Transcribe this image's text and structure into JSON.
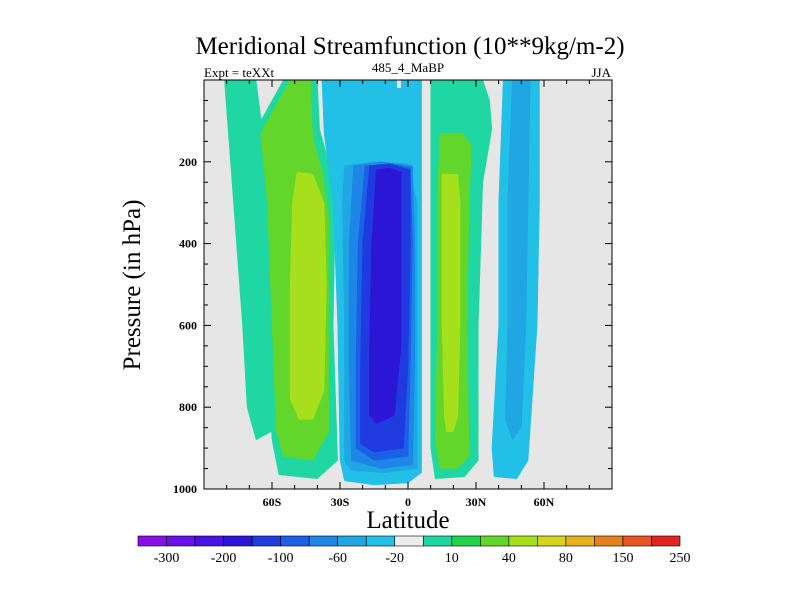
{
  "chart_data": {
    "type": "contour",
    "title": "Meridional Streamfunction (10**9kg/m-2)",
    "subtitle_left": "Expt = teXXt",
    "subtitle_center": "485_4_MaBP",
    "subtitle_right": "JJA",
    "xlabel": "Latitude",
    "ylabel": "Pressure (in hPa)",
    "xlim": [
      -90,
      90
    ],
    "ylim": [
      1000,
      0
    ],
    "x_ticks": [
      {
        "value": -60,
        "label": "60S"
      },
      {
        "value": -30,
        "label": "30S"
      },
      {
        "value": 0,
        "label": "0"
      },
      {
        "value": 30,
        "label": "30N"
      },
      {
        "value": 60,
        "label": "60N"
      }
    ],
    "y_ticks": [
      {
        "value": 200,
        "label": "200"
      },
      {
        "value": 400,
        "label": "400"
      },
      {
        "value": 600,
        "label": "600"
      },
      {
        "value": 800,
        "label": "800"
      },
      {
        "value": 1000,
        "label": "1000"
      }
    ],
    "background_color": "#e6e6e6",
    "colorbar": {
      "colors": [
        "#8a0ee8",
        "#6a0fe6",
        "#4a12e2",
        "#2b16d6",
        "#1f3be0",
        "#1a61e6",
        "#1d86e6",
        "#1fa6e3",
        "#22c0e6",
        "#ececec",
        "#1fd7a2",
        "#22d14a",
        "#62d62a",
        "#a6e01c",
        "#d4d41a",
        "#e6b21c",
        "#e6801f",
        "#e65522",
        "#e02422"
      ],
      "labels": [
        "-300",
        "-200",
        "-100",
        "-60",
        "-20",
        "10",
        "40",
        "80",
        "150",
        "250"
      ]
    },
    "regions": [
      {
        "value": 10,
        "color": "#1fd7a2",
        "lat_lon_polygon": [
          [
            -81,
            0
          ],
          [
            -67,
            0
          ],
          [
            -64,
            130
          ],
          [
            -62,
            330
          ],
          [
            -58,
            550
          ],
          [
            -57,
            850
          ],
          [
            -67,
            880
          ],
          [
            -71,
            800
          ],
          [
            -73,
            600
          ],
          [
            -77,
            300
          ]
        ]
      },
      {
        "value": 10,
        "color": "#1fd7a2",
        "lat_lon_polygon": [
          [
            -55,
            0
          ],
          [
            -40,
            0
          ],
          [
            -39,
            120
          ],
          [
            -36,
            180
          ],
          [
            -32,
            300
          ],
          [
            -33,
            600
          ],
          [
            -31,
            930
          ],
          [
            -40,
            975
          ],
          [
            -57,
            965
          ],
          [
            -60,
            880
          ],
          [
            -63,
            600
          ],
          [
            -67,
            300
          ],
          [
            -68,
            130
          ]
        ]
      },
      {
        "value": 40,
        "color": "#62d62a",
        "lat_lon_polygon": [
          [
            -52,
            0
          ],
          [
            -43,
            0
          ],
          [
            -42,
            140
          ],
          [
            -38,
            220
          ],
          [
            -35,
            330
          ],
          [
            -35,
            600
          ],
          [
            -35,
            860
          ],
          [
            -42,
            930
          ],
          [
            -55,
            920
          ],
          [
            -58,
            860
          ],
          [
            -60,
            600
          ],
          [
            -62,
            300
          ],
          [
            -65,
            130
          ]
        ]
      },
      {
        "value": 80,
        "color": "#a6e01c",
        "lat_lon_polygon": [
          [
            -49,
            225
          ],
          [
            -42,
            230
          ],
          [
            -37,
            300
          ],
          [
            -36,
            500
          ],
          [
            -37,
            760
          ],
          [
            -42,
            830
          ],
          [
            -48,
            830
          ],
          [
            -52,
            780
          ],
          [
            -52,
            500
          ],
          [
            -51,
            300
          ]
        ]
      },
      {
        "value": -20,
        "color": "#22c0e6",
        "lat_lon_polygon": [
          [
            -38,
            0
          ],
          [
            -5,
            0
          ],
          [
            -5,
            20
          ],
          [
            -3,
            20
          ],
          [
            -3,
            0
          ],
          [
            3,
            0
          ],
          [
            6,
            0
          ],
          [
            6,
            300
          ],
          [
            6,
            600
          ],
          [
            6,
            960
          ],
          [
            0,
            985
          ],
          [
            -15,
            990
          ],
          [
            -28,
            980
          ],
          [
            -30,
            930
          ],
          [
            -31,
            600
          ],
          [
            -33,
            300
          ],
          [
            -37,
            130
          ]
        ]
      },
      {
        "value": -60,
        "color": "#1fa6e3",
        "lat_lon_polygon": [
          [
            -28,
            210
          ],
          [
            -15,
            200
          ],
          [
            0,
            205
          ],
          [
            4,
            300
          ],
          [
            4,
            600
          ],
          [
            4,
            950
          ],
          [
            -10,
            960
          ],
          [
            -25,
            955
          ],
          [
            -28,
            930
          ],
          [
            -28,
            600
          ],
          [
            -29,
            300
          ]
        ]
      },
      {
        "value": -100,
        "color": "#1d86e6",
        "lat_lon_polygon": [
          [
            -24,
            210
          ],
          [
            -12,
            200
          ],
          [
            2,
            210
          ],
          [
            3,
            400
          ],
          [
            3,
            700
          ],
          [
            2,
            940
          ],
          [
            -12,
            950
          ],
          [
            -25,
            930
          ],
          [
            -26,
            700
          ],
          [
            -26,
            400
          ]
        ]
      },
      {
        "value": -150,
        "color": "#1a61e6",
        "lat_lon_polygon": [
          [
            -19,
            210
          ],
          [
            -8,
            205
          ],
          [
            1,
            215
          ],
          [
            2,
            400
          ],
          [
            1,
            700
          ],
          [
            0,
            920
          ],
          [
            -15,
            930
          ],
          [
            -23,
            900
          ],
          [
            -23,
            700
          ],
          [
            -22,
            400
          ]
        ]
      },
      {
        "value": -200,
        "color": "#1f3be0",
        "lat_lon_polygon": [
          [
            -17,
            210
          ],
          [
            -8,
            205
          ],
          [
            1,
            220
          ],
          [
            1,
            400
          ],
          [
            0,
            700
          ],
          [
            -2,
            900
          ],
          [
            -15,
            910
          ],
          [
            -21,
            890
          ],
          [
            -21,
            700
          ],
          [
            -20,
            400
          ]
        ]
      },
      {
        "value": -250,
        "color": "#2b16d6",
        "lat_lon_polygon": [
          [
            -14,
            220
          ],
          [
            -8,
            215
          ],
          [
            -3,
            225
          ],
          [
            -3,
            400
          ],
          [
            -3,
            650
          ],
          [
            -6,
            820
          ],
          [
            -14,
            840
          ],
          [
            -17,
            820
          ],
          [
            -17,
            650
          ],
          [
            -16,
            400
          ]
        ]
      },
      {
        "value": 10,
        "color": "#1fd7a2",
        "lat_lon_polygon": [
          [
            10,
            0
          ],
          [
            33,
            0
          ],
          [
            36,
            50
          ],
          [
            37,
            120
          ],
          [
            33,
            250
          ],
          [
            31,
            600
          ],
          [
            31,
            930
          ],
          [
            25,
            970
          ],
          [
            12,
            975
          ],
          [
            10,
            900
          ],
          [
            10,
            600
          ],
          [
            10,
            300
          ]
        ]
      },
      {
        "value": 40,
        "color": "#62d62a",
        "lat_lon_polygon": [
          [
            14,
            130
          ],
          [
            24,
            130
          ],
          [
            28,
            160
          ],
          [
            27,
            300
          ],
          [
            26,
            600
          ],
          [
            27,
            920
          ],
          [
            22,
            950
          ],
          [
            14,
            950
          ],
          [
            12,
            880
          ],
          [
            13,
            600
          ],
          [
            13,
            300
          ]
        ]
      },
      {
        "value": 80,
        "color": "#a6e01c",
        "lat_lon_polygon": [
          [
            15,
            230
          ],
          [
            22,
            230
          ],
          [
            23,
            300
          ],
          [
            23,
            600
          ],
          [
            22,
            820
          ],
          [
            20,
            860
          ],
          [
            17,
            860
          ],
          [
            16,
            820
          ],
          [
            15,
            600
          ],
          [
            15,
            300
          ]
        ]
      },
      {
        "value": -20,
        "color": "#22c0e6",
        "lat_lon_polygon": [
          [
            42,
            0
          ],
          [
            58,
            0
          ],
          [
            58,
            300
          ],
          [
            57,
            600
          ],
          [
            53,
            930
          ],
          [
            48,
            975
          ],
          [
            38,
            970
          ],
          [
            37,
            900
          ],
          [
            40,
            600
          ],
          [
            40,
            300
          ]
        ]
      },
      {
        "value": -60,
        "color": "#1fa6e3",
        "lat_lon_polygon": [
          [
            46,
            0
          ],
          [
            54,
            0
          ],
          [
            53,
            300
          ],
          [
            52,
            600
          ],
          [
            50,
            850
          ],
          [
            46,
            880
          ],
          [
            43,
            830
          ],
          [
            44,
            600
          ],
          [
            44,
            300
          ]
        ]
      }
    ]
  }
}
